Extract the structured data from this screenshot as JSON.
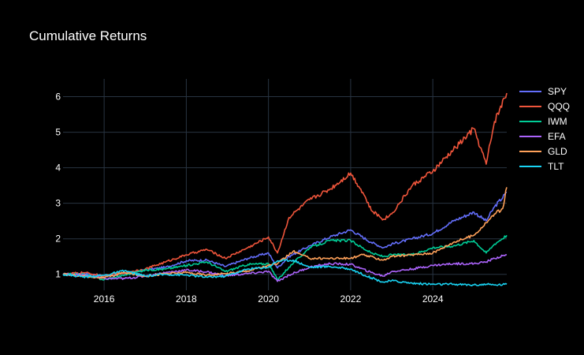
{
  "chart_data": {
    "type": "line",
    "title": "Cumulative Returns",
    "xlabel": "",
    "ylabel": "",
    "x_range": [
      2015.0,
      2025.8
    ],
    "ylim": [
      0.55,
      6.5
    ],
    "x_ticks": [
      {
        "value": 2016,
        "label": "2016"
      },
      {
        "value": 2018,
        "label": "2018"
      },
      {
        "value": 2020,
        "label": "2020"
      },
      {
        "value": 2022,
        "label": "2022"
      },
      {
        "value": 2024,
        "label": "2024"
      }
    ],
    "y_ticks": [
      {
        "value": 1,
        "label": "1"
      },
      {
        "value": 2,
        "label": "2"
      },
      {
        "value": 3,
        "label": "3"
      },
      {
        "value": 4,
        "label": "4"
      },
      {
        "value": 5,
        "label": "5"
      },
      {
        "value": 6,
        "label": "6"
      }
    ],
    "grid": true,
    "legend_position": "top-right",
    "background": "#000000",
    "series": [
      {
        "name": "SPY",
        "color": "#636efa",
        "x": [
          2015.0,
          2015.5,
          2016.0,
          2016.5,
          2017.0,
          2017.5,
          2018.0,
          2018.5,
          2018.95,
          2019.5,
          2020.0,
          2020.22,
          2020.5,
          2021.0,
          2021.5,
          2022.0,
          2022.5,
          2022.8,
          2023.0,
          2023.5,
          2024.0,
          2024.5,
          2025.0,
          2025.3,
          2025.5,
          2025.8
        ],
        "y": [
          1.0,
          1.03,
          0.95,
          1.02,
          1.12,
          1.2,
          1.38,
          1.4,
          1.22,
          1.45,
          1.6,
          1.18,
          1.5,
          1.8,
          2.05,
          2.25,
          1.9,
          1.75,
          1.85,
          2.0,
          2.15,
          2.5,
          2.75,
          2.5,
          2.9,
          3.3
        ]
      },
      {
        "name": "QQQ",
        "color": "#ef553b",
        "x": [
          2015.0,
          2015.5,
          2016.0,
          2016.5,
          2017.0,
          2017.5,
          2018.0,
          2018.5,
          2018.95,
          2019.5,
          2020.0,
          2020.22,
          2020.5,
          2021.0,
          2021.5,
          2022.0,
          2022.3,
          2022.5,
          2022.8,
          2023.0,
          2023.5,
          2024.0,
          2024.5,
          2025.0,
          2025.3,
          2025.5,
          2025.8
        ],
        "y": [
          1.0,
          1.05,
          0.95,
          1.05,
          1.15,
          1.35,
          1.55,
          1.7,
          1.45,
          1.75,
          2.05,
          1.6,
          2.6,
          3.1,
          3.4,
          3.85,
          3.3,
          2.8,
          2.55,
          2.7,
          3.5,
          3.9,
          4.5,
          5.1,
          4.1,
          5.3,
          6.1
        ]
      },
      {
        "name": "IWM",
        "color": "#00cc96",
        "x": [
          2015.0,
          2015.5,
          2016.0,
          2016.5,
          2017.0,
          2017.5,
          2018.0,
          2018.5,
          2018.95,
          2019.5,
          2020.0,
          2020.22,
          2020.5,
          2021.0,
          2021.5,
          2022.0,
          2022.5,
          2022.8,
          2023.0,
          2023.5,
          2024.0,
          2024.5,
          2025.0,
          2025.3,
          2025.5,
          2025.8
        ],
        "y": [
          1.0,
          1.0,
          0.85,
          0.98,
          1.12,
          1.15,
          1.25,
          1.35,
          1.08,
          1.28,
          1.3,
          0.85,
          1.2,
          1.75,
          1.95,
          1.95,
          1.6,
          1.5,
          1.55,
          1.55,
          1.75,
          1.8,
          1.95,
          1.6,
          1.85,
          2.1
        ]
      },
      {
        "name": "EFA",
        "color": "#ab63fa",
        "x": [
          2015.0,
          2015.5,
          2016.0,
          2016.5,
          2017.0,
          2017.5,
          2018.0,
          2018.5,
          2018.95,
          2019.5,
          2020.0,
          2020.22,
          2020.5,
          2021.0,
          2021.5,
          2022.0,
          2022.5,
          2022.8,
          2023.0,
          2023.5,
          2024.0,
          2024.5,
          2025.0,
          2025.3,
          2025.5,
          2025.8
        ],
        "y": [
          1.0,
          0.98,
          0.88,
          0.88,
          0.95,
          1.05,
          1.12,
          1.07,
          0.96,
          1.02,
          1.08,
          0.8,
          0.98,
          1.2,
          1.3,
          1.28,
          1.05,
          0.95,
          1.08,
          1.15,
          1.25,
          1.3,
          1.3,
          1.35,
          1.45,
          1.55
        ]
      },
      {
        "name": "GLD",
        "color": "#ffa15a",
        "x": [
          2015.0,
          2015.5,
          2016.0,
          2016.5,
          2017.0,
          2017.5,
          2018.0,
          2018.5,
          2018.95,
          2019.5,
          2020.0,
          2020.22,
          2020.6,
          2021.0,
          2021.5,
          2022.0,
          2022.3,
          2022.8,
          2023.0,
          2023.5,
          2024.0,
          2024.5,
          2025.0,
          2025.3,
          2025.5,
          2025.7,
          2025.8
        ],
        "y": [
          1.0,
          0.95,
          0.9,
          1.05,
          0.95,
          1.02,
          1.05,
          0.98,
          1.02,
          1.1,
          1.25,
          1.3,
          1.65,
          1.45,
          1.45,
          1.45,
          1.55,
          1.4,
          1.5,
          1.55,
          1.6,
          1.9,
          2.1,
          2.45,
          2.7,
          2.85,
          3.45
        ]
      },
      {
        "name": "TLT",
        "color": "#19d3f3",
        "x": [
          2015.0,
          2015.5,
          2016.0,
          2016.5,
          2017.0,
          2017.5,
          2018.0,
          2018.5,
          2018.95,
          2019.5,
          2020.0,
          2020.22,
          2020.6,
          2021.0,
          2021.5,
          2022.0,
          2022.5,
          2022.8,
          2023.0,
          2023.5,
          2024.0,
          2024.5,
          2025.0,
          2025.3,
          2025.5,
          2025.8
        ],
        "y": [
          1.0,
          0.93,
          0.97,
          1.1,
          0.95,
          1.0,
          0.98,
          0.92,
          0.95,
          1.15,
          1.2,
          1.38,
          1.4,
          1.2,
          1.22,
          1.15,
          0.9,
          0.78,
          0.82,
          0.75,
          0.72,
          0.72,
          0.7,
          0.72,
          0.7,
          0.72
        ]
      }
    ]
  }
}
